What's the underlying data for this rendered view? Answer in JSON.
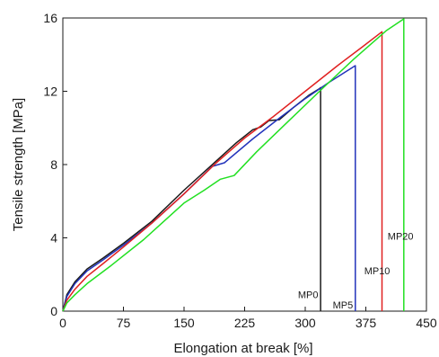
{
  "chart_data": {
    "type": "line",
    "xlabel": "Elongation at break [%]",
    "ylabel": "Tensile strength [MPa]",
    "xlim": [
      0,
      450
    ],
    "ylim": [
      0,
      16
    ],
    "xticks": [
      0,
      75,
      150,
      225,
      300,
      375,
      450
    ],
    "yticks": [
      0,
      4,
      8,
      12,
      16
    ],
    "grid": false,
    "legend": "none",
    "series": [
      {
        "name": "MP0",
        "color": "#1a1a1a",
        "points": [
          [
            0,
            0
          ],
          [
            5,
            0.9
          ],
          [
            15,
            1.6
          ],
          [
            30,
            2.3
          ],
          [
            50,
            2.9
          ],
          [
            75,
            3.7
          ],
          [
            110,
            4.9
          ],
          [
            150,
            6.6
          ],
          [
            190,
            8.2
          ],
          [
            215,
            9.2
          ],
          [
            235,
            9.9
          ],
          [
            245,
            10.05
          ],
          [
            255,
            10.4
          ],
          [
            268,
            10.45
          ],
          [
            285,
            11.1
          ],
          [
            305,
            11.8
          ],
          [
            318,
            12.15
          ],
          [
            319,
            12.2
          ],
          [
            319,
            0
          ]
        ]
      },
      {
        "name": "MP5",
        "color": "#2233bb",
        "points": [
          [
            0,
            0
          ],
          [
            5,
            0.8
          ],
          [
            15,
            1.5
          ],
          [
            30,
            2.2
          ],
          [
            50,
            2.8
          ],
          [
            75,
            3.6
          ],
          [
            110,
            4.8
          ],
          [
            150,
            6.4
          ],
          [
            185,
            7.9
          ],
          [
            200,
            8.1
          ],
          [
            235,
            9.4
          ],
          [
            270,
            10.6
          ],
          [
            300,
            11.6
          ],
          [
            330,
            12.5
          ],
          [
            362,
            13.4
          ],
          [
            362,
            0
          ]
        ]
      },
      {
        "name": "MP10",
        "color": "#e02020",
        "points": [
          [
            0,
            0
          ],
          [
            5,
            0.6
          ],
          [
            15,
            1.2
          ],
          [
            30,
            1.9
          ],
          [
            50,
            2.6
          ],
          [
            75,
            3.5
          ],
          [
            110,
            4.8
          ],
          [
            150,
            6.4
          ],
          [
            190,
            8.1
          ],
          [
            225,
            9.45
          ],
          [
            260,
            10.6
          ],
          [
            300,
            12.0
          ],
          [
            340,
            13.4
          ],
          [
            370,
            14.4
          ],
          [
            395,
            15.25
          ],
          [
            395,
            0
          ]
        ]
      },
      {
        "name": "MP20",
        "color": "#22e022",
        "points": [
          [
            0,
            0
          ],
          [
            5,
            0.45
          ],
          [
            15,
            0.9
          ],
          [
            30,
            1.5
          ],
          [
            60,
            2.5
          ],
          [
            100,
            3.9
          ],
          [
            150,
            5.9
          ],
          [
            175,
            6.6
          ],
          [
            195,
            7.2
          ],
          [
            212,
            7.4
          ],
          [
            240,
            8.7
          ],
          [
            280,
            10.4
          ],
          [
            320,
            12.1
          ],
          [
            360,
            13.75
          ],
          [
            400,
            15.3
          ],
          [
            422,
            15.95
          ],
          [
            422,
            0
          ]
        ]
      }
    ],
    "annotations": [
      {
        "text": "MP0",
        "series": "MP0",
        "x": 291,
        "y": 0.9
      },
      {
        "text": "MP5",
        "series": "MP5",
        "x": 334,
        "y": 0.35
      },
      {
        "text": "MP10",
        "series": "MP10",
        "x": 373,
        "y": 2.2
      },
      {
        "text": "MP20",
        "series": "MP20",
        "x": 402,
        "y": 4.1
      }
    ]
  }
}
